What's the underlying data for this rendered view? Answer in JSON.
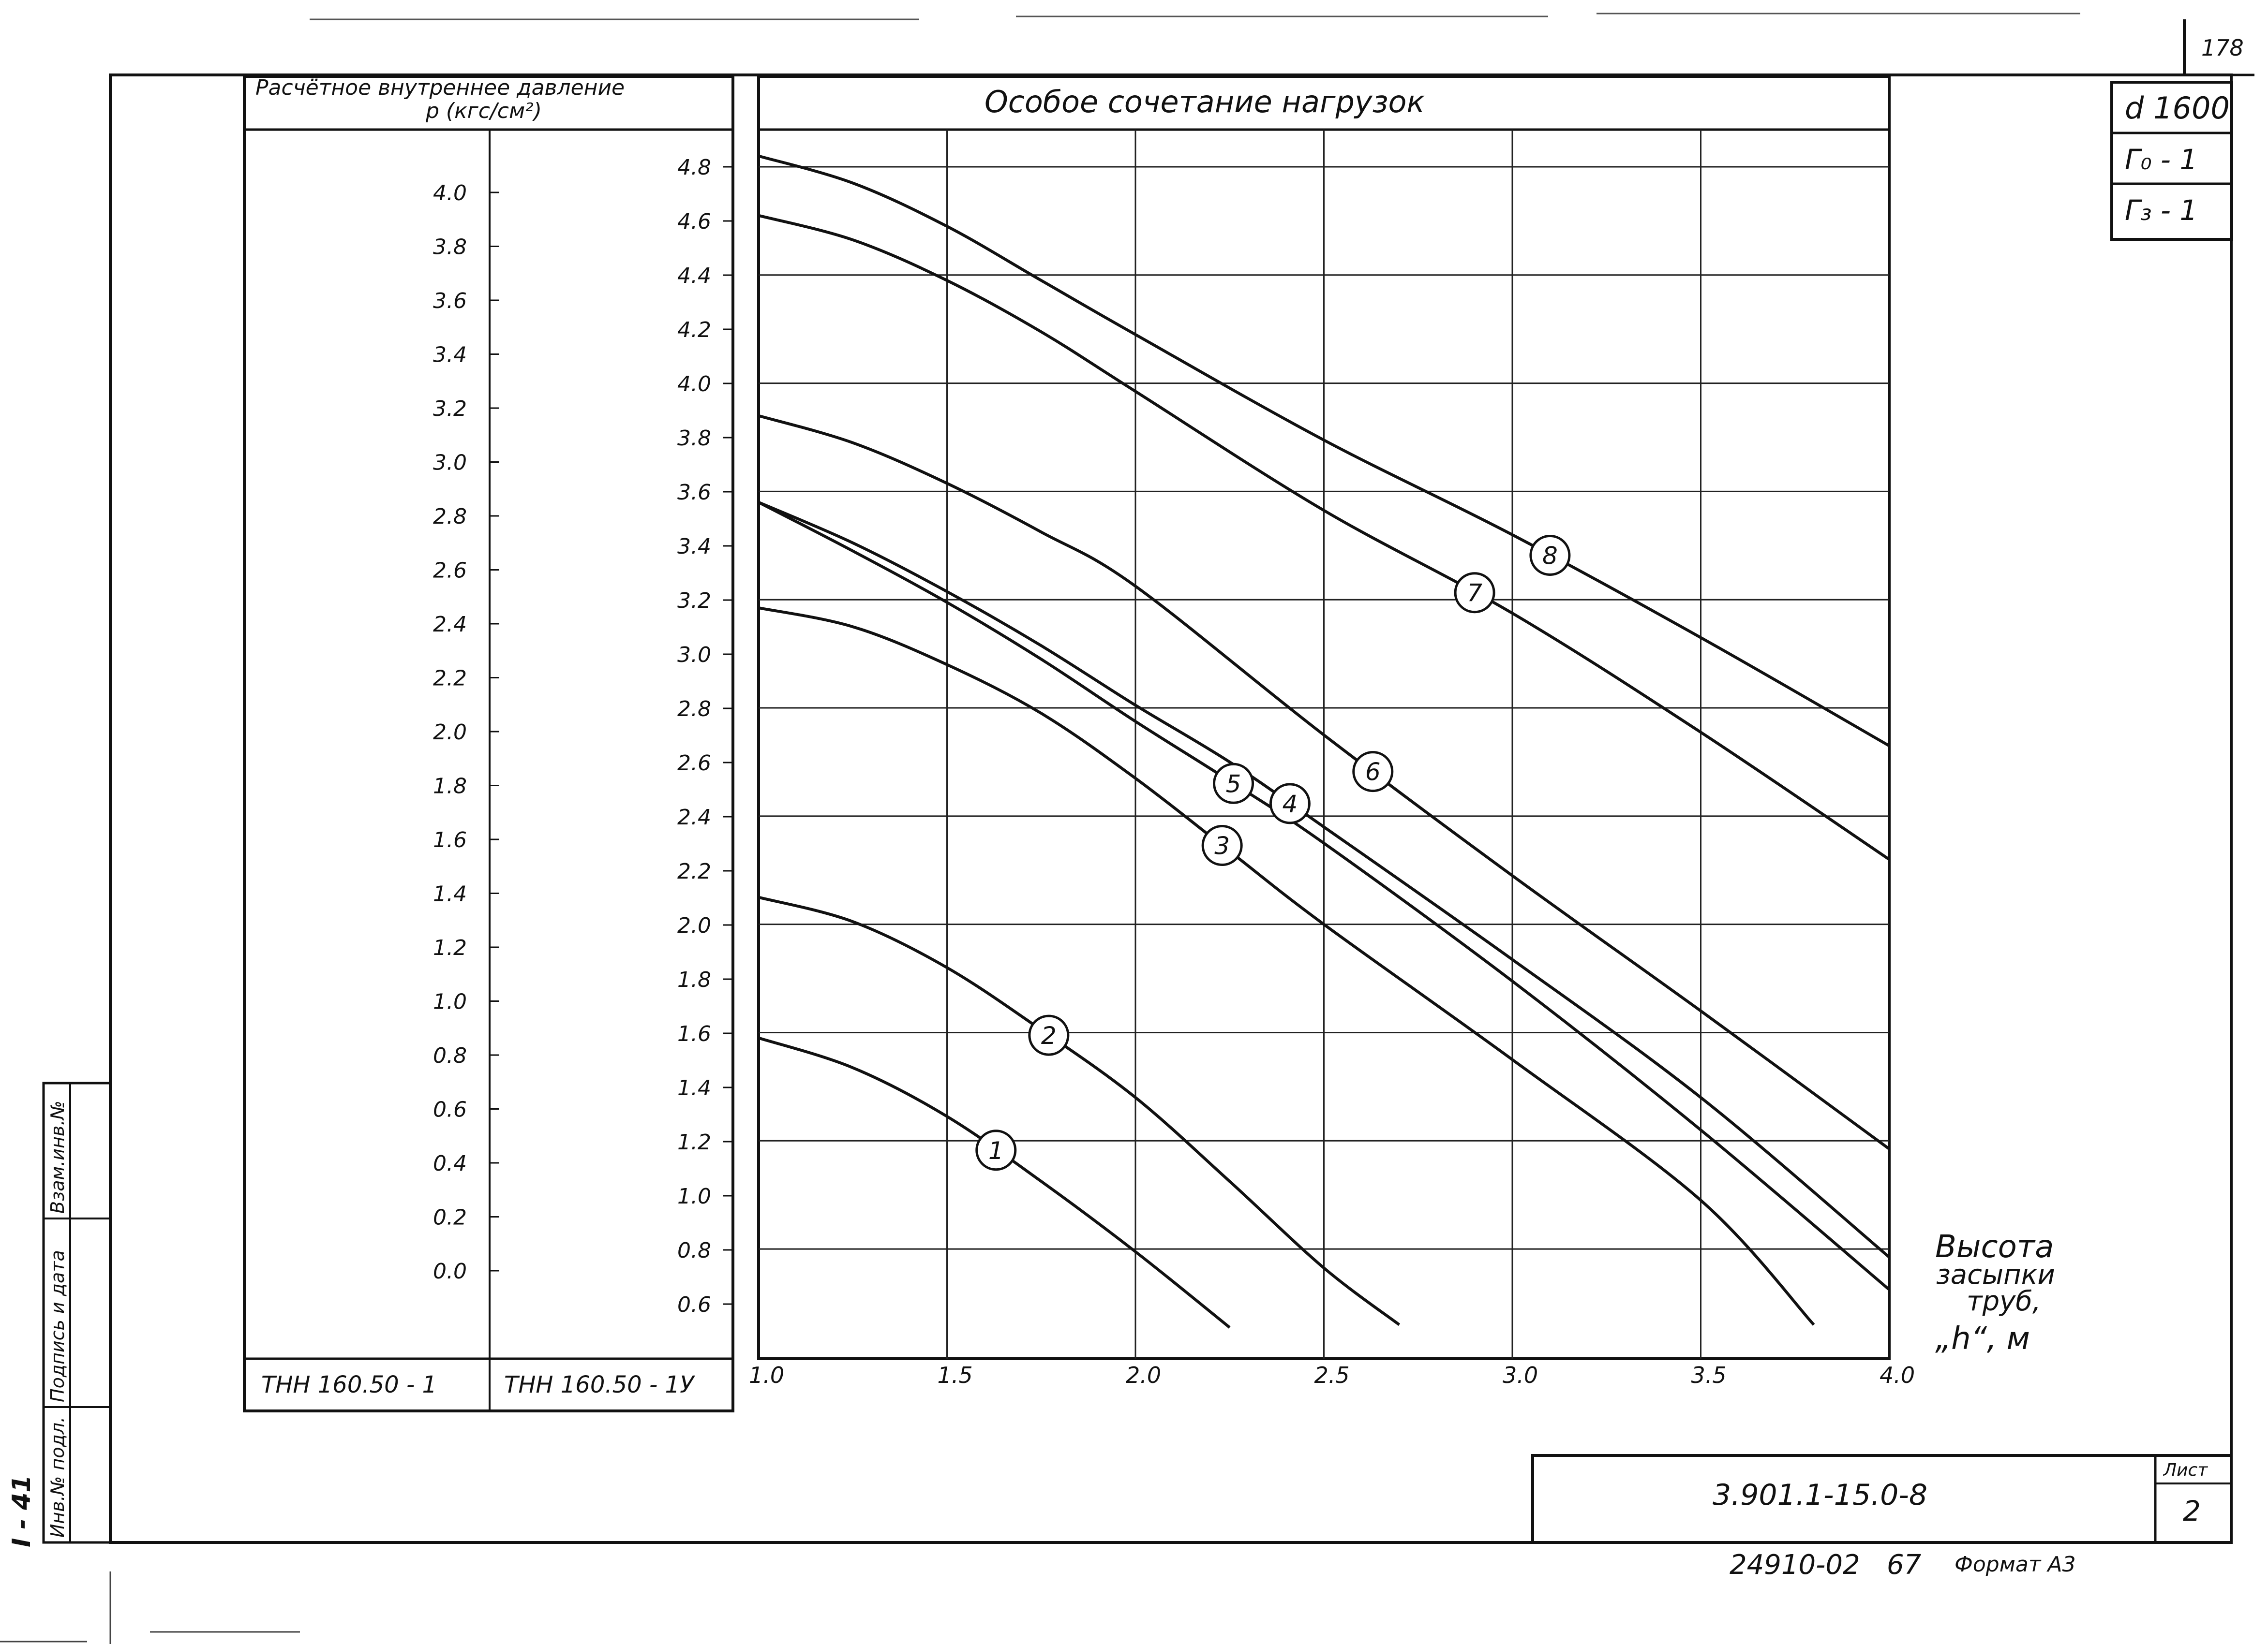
{
  "sheet": {
    "page_number": "178",
    "corner_stamp": [
      "d 1600",
      "Г₀ - 1",
      "Г₃ - 1"
    ],
    "document_code": "3.901.1-15.0-8",
    "list_label": "Лист",
    "list_number": "2",
    "bottom_code": "24910-02",
    "bottom_number": "67",
    "format_label": "Формат А3",
    "side_mark": "I - 41",
    "side_columns": [
      "Инв.№ подл.",
      "Подпись и дата",
      "Взам.инв.№"
    ]
  },
  "pressure_scale": {
    "header_line1": "Расчётное внутреннее давление",
    "header_line2": "p (кгс/см²)",
    "left_ticks": [
      "4.0",
      "3.8",
      "3.6",
      "3.4",
      "3.2",
      "3.0",
      "2.8",
      "2.6",
      "2.4",
      "2.2",
      "2.0",
      "1.8",
      "1.6",
      "1.4",
      "1.2",
      "1.0",
      "0.8",
      "0.6",
      "0.4",
      "0.2",
      "0.0"
    ],
    "right_ticks": [
      "4.8",
      "4.6",
      "4.4",
      "4.2",
      "4.0",
      "3.8",
      "3.6",
      "3.4",
      "3.2",
      "3.0",
      "2.8",
      "2.6",
      "2.4",
      "2.2",
      "2.0",
      "1.8",
      "1.6",
      "1.4",
      "1.2",
      "1.0",
      "0.8",
      "0.6"
    ],
    "left_footer": "ТНН 160.50 - 1",
    "right_footer": "ТНН 160.50 - 1У"
  },
  "chart_data": {
    "type": "line",
    "title": "Особое сочетание нагрузок",
    "xlabel": [
      "Высота",
      "засыпки",
      "труб,",
      "„h“, м"
    ],
    "ylabel": "",
    "xlim": [
      1.0,
      4.0
    ],
    "ylim": [
      0.5,
      4.9
    ],
    "x_ticks": [
      "1.0",
      "1.5",
      "2.0",
      "2.5",
      "3.0",
      "3.5",
      "4.0"
    ],
    "grid": true,
    "series": [
      {
        "name": "1",
        "label_at": 1.63,
        "x": [
          1.0,
          1.25,
          1.5,
          1.75,
          2.0,
          2.25
        ],
        "y": [
          1.58,
          1.47,
          1.29,
          1.05,
          0.79,
          0.51
        ]
      },
      {
        "name": "2",
        "label_at": 1.77,
        "x": [
          1.0,
          1.25,
          1.5,
          1.75,
          2.0,
          2.25,
          2.5,
          2.7
        ],
        "y": [
          2.1,
          2.01,
          1.84,
          1.61,
          1.36,
          1.05,
          0.73,
          0.52
        ]
      },
      {
        "name": "3",
        "label_at": 2.23,
        "x": [
          1.0,
          1.25,
          1.5,
          1.75,
          2.0,
          2.25,
          2.5,
          3.0,
          3.5,
          3.8
        ],
        "y": [
          3.17,
          3.1,
          2.96,
          2.78,
          2.54,
          2.27,
          2.0,
          1.5,
          0.98,
          0.52
        ]
      },
      {
        "name": "4",
        "label_at": 2.41,
        "x": [
          1.0,
          1.25,
          1.5,
          1.75,
          2.0,
          2.25,
          2.5,
          3.0,
          3.5,
          4.0
        ],
        "y": [
          3.56,
          3.41,
          3.23,
          3.03,
          2.81,
          2.6,
          2.36,
          1.87,
          1.36,
          0.77
        ]
      },
      {
        "name": "5",
        "label_at": 2.26,
        "x": [
          1.0,
          1.25,
          1.5,
          1.75,
          2.0,
          2.25,
          2.5,
          3.0,
          3.5,
          4.0
        ],
        "y": [
          3.56,
          3.38,
          3.19,
          2.98,
          2.75,
          2.53,
          2.3,
          1.79,
          1.24,
          0.65
        ]
      },
      {
        "name": "6",
        "label_at": 2.63,
        "x": [
          1.0,
          1.25,
          1.5,
          1.75,
          2.0,
          2.5,
          3.0,
          3.5,
          4.0
        ],
        "y": [
          3.88,
          3.78,
          3.63,
          3.45,
          3.25,
          2.7,
          2.18,
          1.68,
          1.17
        ]
      },
      {
        "name": "7",
        "label_at": 2.9,
        "x": [
          1.0,
          1.25,
          1.5,
          1.75,
          2.0,
          2.5,
          3.0,
          3.5,
          4.0
        ],
        "y": [
          4.62,
          4.53,
          4.38,
          4.19,
          3.97,
          3.53,
          3.15,
          2.71,
          2.24
        ]
      },
      {
        "name": "8",
        "label_at": 3.1,
        "x": [
          1.0,
          1.25,
          1.5,
          1.75,
          2.0,
          2.5,
          3.0,
          3.5,
          4.0
        ],
        "y": [
          4.84,
          4.74,
          4.58,
          4.38,
          4.18,
          3.79,
          3.44,
          3.06,
          2.66
        ]
      }
    ]
  }
}
